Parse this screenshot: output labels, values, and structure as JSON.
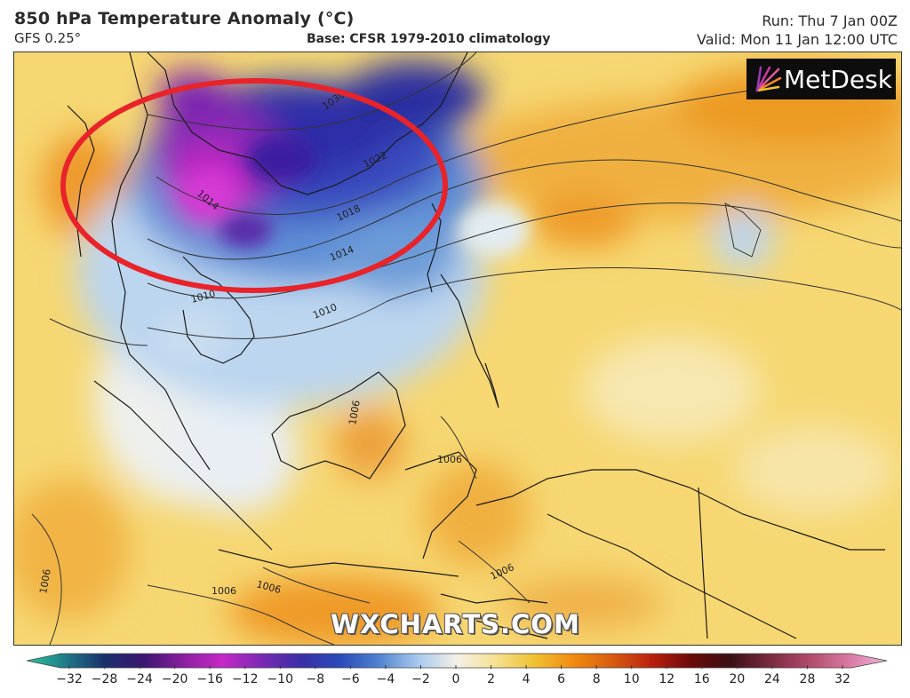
{
  "header": {
    "title": "850 hPa Temperature Anomaly (°C)",
    "model": "GFS 0.25°",
    "base": "Base: CFSR 1979-2010 climatology",
    "run": "Run: Thu 7 Jan 00Z",
    "valid": "Valid: Mon 11 Jan 12:00 UTC"
  },
  "branding": {
    "logo_text": "MetDesk",
    "logo_icon": "metdesk-star-icon",
    "watermark": "WXCHARTS.COM"
  },
  "isobars": [
    "1030",
    "1022",
    "1018",
    "1014",
    "1010",
    "1010",
    "1014",
    "1006",
    "1006",
    "1006",
    "1006",
    "1006",
    "1006"
  ],
  "annotation": {
    "shape": "ellipse",
    "color": "#e8232a"
  },
  "colorbar": {
    "ticks": [
      "−32",
      "−28",
      "−24",
      "−20",
      "−16",
      "−12",
      "−10",
      "−8",
      "−6",
      "−4",
      "−2",
      "0",
      "2",
      "4",
      "6",
      "8",
      "10",
      "12",
      "16",
      "20",
      "24",
      "28",
      "32"
    ],
    "colors": [
      "#2fc59a",
      "#1f7a8a",
      "#1a2f6a",
      "#3a1670",
      "#8a1ea0",
      "#c629c6",
      "#7a2ab5",
      "#3a2ea8",
      "#2a4ab8",
      "#4f82d0",
      "#a8c8ec",
      "#f4f1e8",
      "#f5e190",
      "#f0c030",
      "#f08a10",
      "#d85a10",
      "#b8200e",
      "#6a0a0a",
      "#3a0f14",
      "#7a2a40",
      "#b04a6a",
      "#d878a0",
      "#f0b4d8"
    ]
  }
}
